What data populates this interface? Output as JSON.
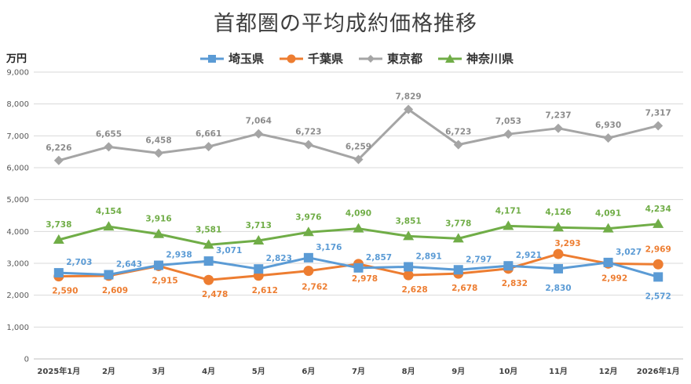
{
  "chart_data": {
    "type": "line",
    "title": "首都圏の平均成約価格推移",
    "ylabel": "万円",
    "xlabel": "",
    "ylim": [
      0,
      9000
    ],
    "yticks": [
      "0",
      "1,000",
      "2,000",
      "3,000",
      "4,000",
      "5,000",
      "6,000",
      "7,000",
      "8,000",
      "9,000"
    ],
    "ytick_values": [
      0,
      1000,
      2000,
      3000,
      4000,
      5000,
      6000,
      7000,
      8000,
      9000
    ],
    "categories": [
      "2025年1月",
      "2月",
      "3月",
      "4月",
      "5月",
      "6月",
      "7月",
      "8月",
      "9月",
      "10月",
      "11月",
      "12月",
      "2026年1月"
    ],
    "legend_position": "top",
    "grid": true,
    "series": [
      {
        "name": "埼玉県",
        "color": "#5B9BD5",
        "marker": "square",
        "values": [
          2703,
          2643,
          2938,
          3071,
          2823,
          3176,
          2857,
          2891,
          2797,
          2921,
          2830,
          3027,
          2572
        ],
        "labels": [
          "2,703",
          "2,643",
          "2,938",
          "3,071",
          "2,823",
          "3,176",
          "2,857",
          "2,891",
          "2,797",
          "2,921",
          "2,830",
          "3,027",
          "2,572"
        ]
      },
      {
        "name": "千葉県",
        "color": "#ED7D31",
        "marker": "circle",
        "values": [
          2590,
          2609,
          2915,
          2478,
          2612,
          2762,
          2978,
          2628,
          2678,
          2832,
          3293,
          2992,
          2969
        ],
        "labels": [
          "2,590",
          "2,609",
          "2,915",
          "2,478",
          "2,612",
          "2,762",
          "2,978",
          "2,628",
          "2,678",
          "2,832",
          "3,293",
          "2,992",
          "2,969"
        ]
      },
      {
        "name": "東京都",
        "color": "#A5A5A5",
        "marker": "diamond",
        "values": [
          6226,
          6655,
          6458,
          6661,
          7064,
          6723,
          6259,
          7829,
          6723,
          7053,
          7237,
          6930,
          7317
        ],
        "labels": [
          "6,226",
          "6,655",
          "6,458",
          "6,661",
          "7,064",
          "6,723",
          "6,259",
          "7,829",
          "6,723",
          "7,053",
          "7,237",
          "6,930",
          "7,317"
        ]
      },
      {
        "name": "神奈川県",
        "color": "#70AD47",
        "marker": "triangle",
        "values": [
          3738,
          4154,
          3916,
          3581,
          3713,
          3976,
          4090,
          3851,
          3778,
          4171,
          4126,
          4091,
          4234
        ],
        "labels": [
          "3,738",
          "4,154",
          "3,916",
          "3,581",
          "3,713",
          "3,976",
          "4,090",
          "3,851",
          "3,778",
          "4,171",
          "4,126",
          "4,091",
          "4,234"
        ]
      }
    ]
  }
}
